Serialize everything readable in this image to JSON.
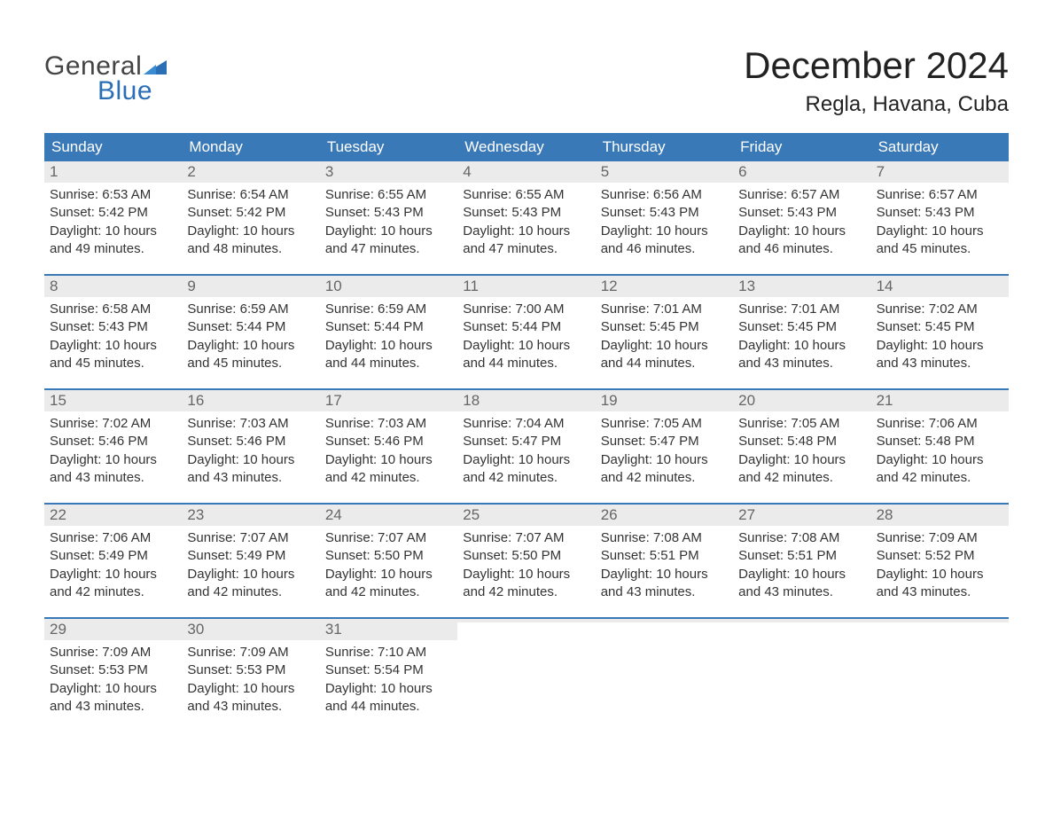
{
  "brand": {
    "word1": "General",
    "word2": "Blue",
    "word1_color": "#444444",
    "word2_color": "#2a6fb5",
    "triangle_color": "#2a6fb5",
    "fontsize": 30
  },
  "title": {
    "month": "December 2024",
    "location": "Regla, Havana, Cuba",
    "month_fontsize": 42,
    "location_fontsize": 24,
    "color": "#222222"
  },
  "style": {
    "header_bg": "#3a79b7",
    "header_text_color": "#ffffff",
    "header_fontsize": 17,
    "daynum_bg": "#ebebeb",
    "daynum_color": "#666666",
    "daynum_fontsize": 17,
    "body_fontsize": 15,
    "body_color": "#333333",
    "week_border_color": "#3a79b7",
    "week_border_width": 2,
    "page_bg": "#ffffff",
    "columns": 7
  },
  "weekdays": [
    "Sunday",
    "Monday",
    "Tuesday",
    "Wednesday",
    "Thursday",
    "Friday",
    "Saturday"
  ],
  "labels": {
    "sunrise": "Sunrise:",
    "sunset": "Sunset:",
    "daylight": "Daylight:"
  },
  "days": [
    {
      "n": "1",
      "sunrise": "6:53 AM",
      "sunset": "5:42 PM",
      "daylight": "10 hours and 49 minutes."
    },
    {
      "n": "2",
      "sunrise": "6:54 AM",
      "sunset": "5:42 PM",
      "daylight": "10 hours and 48 minutes."
    },
    {
      "n": "3",
      "sunrise": "6:55 AM",
      "sunset": "5:43 PM",
      "daylight": "10 hours and 47 minutes."
    },
    {
      "n": "4",
      "sunrise": "6:55 AM",
      "sunset": "5:43 PM",
      "daylight": "10 hours and 47 minutes."
    },
    {
      "n": "5",
      "sunrise": "6:56 AM",
      "sunset": "5:43 PM",
      "daylight": "10 hours and 46 minutes."
    },
    {
      "n": "6",
      "sunrise": "6:57 AM",
      "sunset": "5:43 PM",
      "daylight": "10 hours and 46 minutes."
    },
    {
      "n": "7",
      "sunrise": "6:57 AM",
      "sunset": "5:43 PM",
      "daylight": "10 hours and 45 minutes."
    },
    {
      "n": "8",
      "sunrise": "6:58 AM",
      "sunset": "5:43 PM",
      "daylight": "10 hours and 45 minutes."
    },
    {
      "n": "9",
      "sunrise": "6:59 AM",
      "sunset": "5:44 PM",
      "daylight": "10 hours and 45 minutes."
    },
    {
      "n": "10",
      "sunrise": "6:59 AM",
      "sunset": "5:44 PM",
      "daylight": "10 hours and 44 minutes."
    },
    {
      "n": "11",
      "sunrise": "7:00 AM",
      "sunset": "5:44 PM",
      "daylight": "10 hours and 44 minutes."
    },
    {
      "n": "12",
      "sunrise": "7:01 AM",
      "sunset": "5:45 PM",
      "daylight": "10 hours and 44 minutes."
    },
    {
      "n": "13",
      "sunrise": "7:01 AM",
      "sunset": "5:45 PM",
      "daylight": "10 hours and 43 minutes."
    },
    {
      "n": "14",
      "sunrise": "7:02 AM",
      "sunset": "5:45 PM",
      "daylight": "10 hours and 43 minutes."
    },
    {
      "n": "15",
      "sunrise": "7:02 AM",
      "sunset": "5:46 PM",
      "daylight": "10 hours and 43 minutes."
    },
    {
      "n": "16",
      "sunrise": "7:03 AM",
      "sunset": "5:46 PM",
      "daylight": "10 hours and 43 minutes."
    },
    {
      "n": "17",
      "sunrise": "7:03 AM",
      "sunset": "5:46 PM",
      "daylight": "10 hours and 42 minutes."
    },
    {
      "n": "18",
      "sunrise": "7:04 AM",
      "sunset": "5:47 PM",
      "daylight": "10 hours and 42 minutes."
    },
    {
      "n": "19",
      "sunrise": "7:05 AM",
      "sunset": "5:47 PM",
      "daylight": "10 hours and 42 minutes."
    },
    {
      "n": "20",
      "sunrise": "7:05 AM",
      "sunset": "5:48 PM",
      "daylight": "10 hours and 42 minutes."
    },
    {
      "n": "21",
      "sunrise": "7:06 AM",
      "sunset": "5:48 PM",
      "daylight": "10 hours and 42 minutes."
    },
    {
      "n": "22",
      "sunrise": "7:06 AM",
      "sunset": "5:49 PM",
      "daylight": "10 hours and 42 minutes."
    },
    {
      "n": "23",
      "sunrise": "7:07 AM",
      "sunset": "5:49 PM",
      "daylight": "10 hours and 42 minutes."
    },
    {
      "n": "24",
      "sunrise": "7:07 AM",
      "sunset": "5:50 PM",
      "daylight": "10 hours and 42 minutes."
    },
    {
      "n": "25",
      "sunrise": "7:07 AM",
      "sunset": "5:50 PM",
      "daylight": "10 hours and 42 minutes."
    },
    {
      "n": "26",
      "sunrise": "7:08 AM",
      "sunset": "5:51 PM",
      "daylight": "10 hours and 43 minutes."
    },
    {
      "n": "27",
      "sunrise": "7:08 AM",
      "sunset": "5:51 PM",
      "daylight": "10 hours and 43 minutes."
    },
    {
      "n": "28",
      "sunrise": "7:09 AM",
      "sunset": "5:52 PM",
      "daylight": "10 hours and 43 minutes."
    },
    {
      "n": "29",
      "sunrise": "7:09 AM",
      "sunset": "5:53 PM",
      "daylight": "10 hours and 43 minutes."
    },
    {
      "n": "30",
      "sunrise": "7:09 AM",
      "sunset": "5:53 PM",
      "daylight": "10 hours and 43 minutes."
    },
    {
      "n": "31",
      "sunrise": "7:10 AM",
      "sunset": "5:54 PM",
      "daylight": "10 hours and 44 minutes."
    }
  ],
  "first_weekday_index": 0,
  "trailing_blanks": 4
}
